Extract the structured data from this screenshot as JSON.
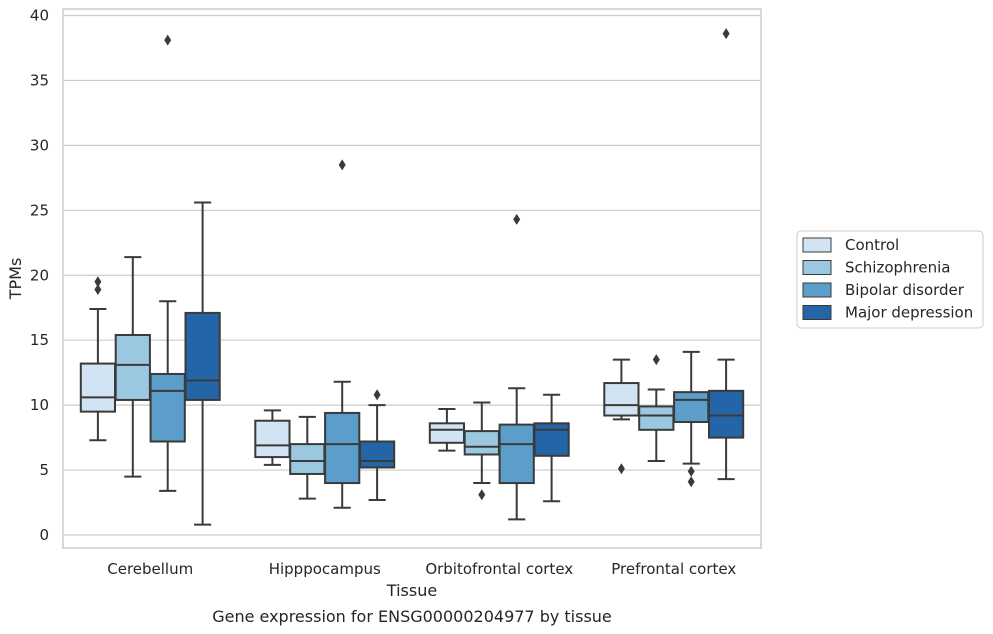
{
  "chart_data": {
    "type": "boxplot",
    "xlabel": "Tissue",
    "ylabel": "TPMs",
    "caption": "Gene expression for ENSG00000204977 by tissue",
    "ylim": [
      -1,
      40.5
    ],
    "yticks": [
      0,
      5,
      10,
      15,
      20,
      25,
      30,
      35,
      40
    ],
    "grid": true,
    "legend_position": "outside-right",
    "categories": [
      "Cerebellum",
      "Hipppocampus",
      "Orbitofrontal cortex",
      "Prefrontal cortex"
    ],
    "series": [
      {
        "name": "Control",
        "color": "#d2e3f3",
        "boxes": [
          {
            "whislo": 7.3,
            "q1": 9.5,
            "med": 10.6,
            "q3": 13.2,
            "whishi": 17.4,
            "fliers": [
              18.9,
              19.5
            ]
          },
          {
            "whislo": 5.4,
            "q1": 6.0,
            "med": 6.9,
            "q3": 8.8,
            "whishi": 9.6,
            "fliers": []
          },
          {
            "whislo": 6.5,
            "q1": 7.1,
            "med": 8.1,
            "q3": 8.6,
            "whishi": 9.7,
            "fliers": []
          },
          {
            "whislo": 8.9,
            "q1": 9.2,
            "med": 10.0,
            "q3": 11.7,
            "whishi": 13.5,
            "fliers": [
              5.1
            ]
          }
        ]
      },
      {
        "name": "Schizophrenia",
        "color": "#9ac8e0",
        "boxes": [
          {
            "whislo": 4.5,
            "q1": 10.4,
            "med": 13.1,
            "q3": 15.4,
            "whishi": 21.4,
            "fliers": []
          },
          {
            "whislo": 2.8,
            "q1": 4.7,
            "med": 5.7,
            "q3": 7.0,
            "whishi": 9.1,
            "fliers": []
          },
          {
            "whislo": 4.0,
            "q1": 6.2,
            "med": 6.8,
            "q3": 8.0,
            "whishi": 10.2,
            "fliers": [
              3.1
            ]
          },
          {
            "whislo": 5.7,
            "q1": 8.1,
            "med": 9.2,
            "q3": 9.9,
            "whishi": 11.2,
            "fliers": [
              13.5
            ]
          }
        ]
      },
      {
        "name": "Bipolar disorder",
        "color": "#5a9ec9",
        "boxes": [
          {
            "whislo": 3.4,
            "q1": 7.2,
            "med": 11.1,
            "q3": 12.4,
            "whishi": 18.0,
            "fliers": [
              38.1
            ]
          },
          {
            "whislo": 2.1,
            "q1": 4.0,
            "med": 7.0,
            "q3": 9.4,
            "whishi": 11.8,
            "fliers": [
              28.5
            ]
          },
          {
            "whislo": 1.2,
            "q1": 4.0,
            "med": 7.0,
            "q3": 8.5,
            "whishi": 11.3,
            "fliers": [
              24.3
            ]
          },
          {
            "whislo": 5.5,
            "q1": 8.7,
            "med": 10.4,
            "q3": 11.0,
            "whishi": 14.1,
            "fliers": [
              4.9,
              4.1
            ]
          }
        ]
      },
      {
        "name": "Major depression",
        "color": "#2465a8",
        "boxes": [
          {
            "whislo": 0.8,
            "q1": 10.4,
            "med": 11.9,
            "q3": 17.1,
            "whishi": 25.6,
            "fliers": []
          },
          {
            "whislo": 2.7,
            "q1": 5.2,
            "med": 5.7,
            "q3": 7.2,
            "whishi": 10.0,
            "fliers": [
              10.8
            ]
          },
          {
            "whislo": 2.6,
            "q1": 6.1,
            "med": 8.1,
            "q3": 8.6,
            "whishi": 10.8,
            "fliers": []
          },
          {
            "whislo": 4.3,
            "q1": 7.5,
            "med": 9.2,
            "q3": 11.1,
            "whishi": 13.5,
            "fliers": [
              38.6
            ]
          }
        ]
      }
    ]
  }
}
